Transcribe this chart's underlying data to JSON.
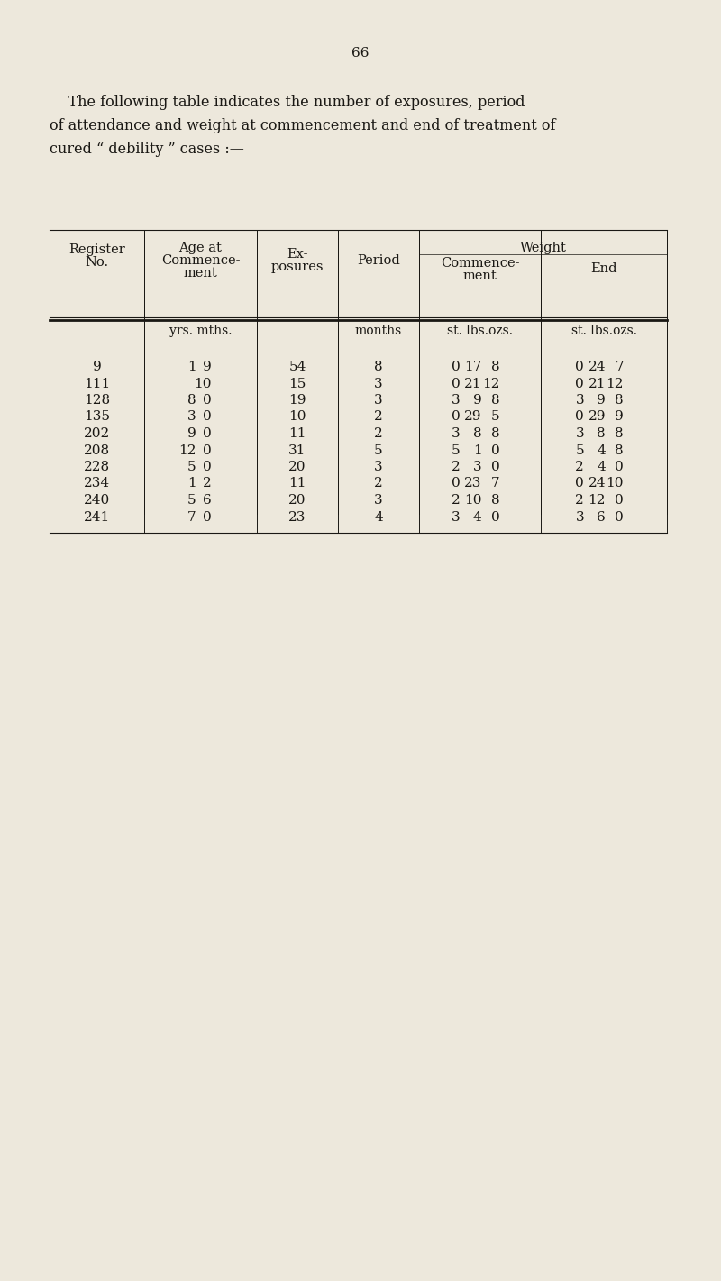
{
  "page_number": "66",
  "intro_lines": [
    "    The following table indicates the number of exposures, period",
    "of attendance and weight at commencement and end of treatment of",
    "cured “ debility ” cases :—"
  ],
  "background_color": "#ede8dc",
  "text_color": "#1a1814",
  "rows": [
    {
      "reg": "9",
      "age_y": "1",
      "age_m": "9",
      "exp": "54",
      "period": "8",
      "wc_s": "0",
      "wc_l": "17",
      "wc_o": "8",
      "we_s": "0",
      "we_l": "24",
      "we_o": "7"
    },
    {
      "reg": "111",
      "age_y": "",
      "age_m": "10",
      "exp": "15",
      "period": "3",
      "wc_s": "0",
      "wc_l": "21",
      "wc_o": "12",
      "we_s": "0",
      "we_l": "21",
      "we_o": "12"
    },
    {
      "reg": "128",
      "age_y": "8",
      "age_m": "0",
      "exp": "19",
      "period": "3",
      "wc_s": "3",
      "wc_l": "9",
      "wc_o": "8",
      "we_s": "3",
      "we_l": "9",
      "we_o": "8"
    },
    {
      "reg": "135",
      "age_y": "3",
      "age_m": "0",
      "exp": "10",
      "period": "2",
      "wc_s": "0",
      "wc_l": "29",
      "wc_o": "5",
      "we_s": "0",
      "we_l": "29",
      "we_o": "9"
    },
    {
      "reg": "202",
      "age_y": "9",
      "age_m": "0",
      "exp": "11",
      "period": "2",
      "wc_s": "3",
      "wc_l": "8",
      "wc_o": "8",
      "we_s": "3",
      "we_l": "8",
      "we_o": "8"
    },
    {
      "reg": "208",
      "age_y": "12",
      "age_m": "0",
      "exp": "31",
      "period": "5",
      "wc_s": "5",
      "wc_l": "1",
      "wc_o": "0",
      "we_s": "5",
      "we_l": "4",
      "we_o": "8"
    },
    {
      "reg": "228",
      "age_y": "5",
      "age_m": "0",
      "exp": "20",
      "period": "3",
      "wc_s": "2",
      "wc_l": "3",
      "wc_o": "0",
      "we_s": "2",
      "we_l": "4",
      "we_o": "0"
    },
    {
      "reg": "234",
      "age_y": "1",
      "age_m": "2",
      "exp": "11",
      "period": "2",
      "wc_s": "0",
      "wc_l": "23",
      "wc_o": "7",
      "we_s": "0",
      "we_l": "24",
      "we_o": "10"
    },
    {
      "reg": "240",
      "age_y": "5",
      "age_m": "6",
      "exp": "20",
      "period": "3",
      "wc_s": "2",
      "wc_l": "10",
      "wc_o": "8",
      "we_s": "2",
      "we_l": "12",
      "we_o": "0"
    },
    {
      "reg": "241",
      "age_y": "7",
      "age_m": "0",
      "exp": "23",
      "period": "4",
      "wc_s": "3",
      "wc_l": "4",
      "wc_o": "0",
      "we_s": "3",
      "we_l": "6",
      "we_o": "0"
    }
  ],
  "fs_body": 11.0,
  "fs_header": 10.5,
  "fs_units": 10.0,
  "fs_page": 11.0,
  "fs_intro": 11.5
}
